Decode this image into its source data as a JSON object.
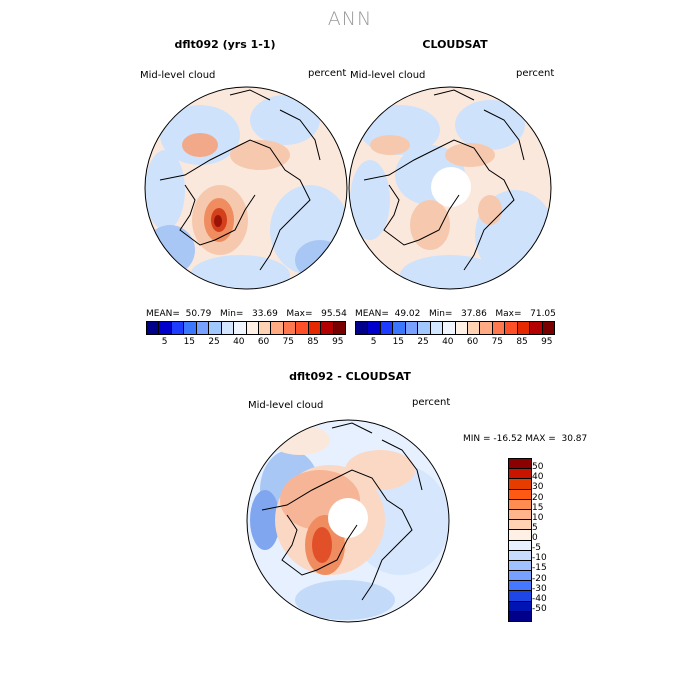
{
  "main_title": "ANN",
  "panel1": {
    "title": "dflt092 (yrs 1-1)",
    "left_label": "Mid-level cloud",
    "right_label": "percent",
    "stats": "MEAN=  50.79   Min=   33.69   Max=   95.54"
  },
  "panel2": {
    "title": "CLOUDSAT",
    "left_label": "Mid-level cloud",
    "right_label": "percent",
    "stats": "MEAN=  49.02   Min=   37.86   Max=   71.05"
  },
  "panel3": {
    "title": "dflt092 - CLOUDSAT",
    "left_label": "Mid-level cloud",
    "right_label": "percent",
    "minmax": "MIN = -16.52 MAX =  30.87"
  },
  "colorbar_top": {
    "labels": [
      "5",
      "15",
      "25",
      "40",
      "60",
      "75",
      "85",
      "95"
    ],
    "colors": [
      "#00008b",
      "#0000cd",
      "#1e3cff",
      "#3c78ff",
      "#78a0ff",
      "#a0c8ff",
      "#d2e6ff",
      "#f0f5ff",
      "#fff0e6",
      "#ffd2b4",
      "#ffaa82",
      "#ff7850",
      "#ff5028",
      "#e62800",
      "#b40000",
      "#780000"
    ]
  },
  "colorbar_diff": {
    "labels": [
      "50",
      "40",
      "30",
      "20",
      "15",
      "10",
      "5",
      "0",
      "-5",
      "-10",
      "-15",
      "-20",
      "-30",
      "-40",
      "-50"
    ],
    "colors": [
      "#8b0000",
      "#c81400",
      "#e63c00",
      "#ff5a14",
      "#ff8c50",
      "#ffb48c",
      "#ffd2b4",
      "#fff0e6",
      "#e6f0ff",
      "#c8dcff",
      "#a0c0ff",
      "#78a0ff",
      "#4678ff",
      "#1e46e6",
      "#0014b4",
      "#00008b"
    ]
  }
}
